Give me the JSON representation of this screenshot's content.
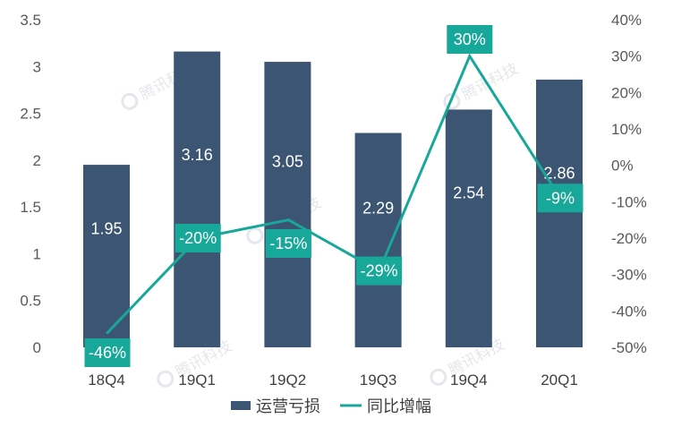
{
  "chart_data": {
    "type": "bar+line",
    "categories": [
      "18Q4",
      "19Q1",
      "19Q2",
      "19Q3",
      "19Q4",
      "20Q1"
    ],
    "series": [
      {
        "name": "运营亏损",
        "type": "bar",
        "axis": "left",
        "values": [
          1.95,
          3.16,
          3.05,
          2.29,
          2.54,
          2.86
        ],
        "labels": [
          "1.95",
          "3.16",
          "3.05",
          "2.29",
          "2.54",
          "2.86"
        ]
      },
      {
        "name": "同比增幅",
        "type": "line",
        "axis": "right",
        "values": [
          -46,
          -20,
          -15,
          -29,
          30,
          -9
        ],
        "labels": [
          "-46%",
          "-20%",
          "-15%",
          "-29%",
          "30%",
          "-9%"
        ]
      }
    ],
    "left_axis": {
      "min": 0,
      "max": 3.5,
      "ticks": [
        "0",
        "0.5",
        "1",
        "1.5",
        "2",
        "2.5",
        "3",
        "3.5"
      ]
    },
    "right_axis": {
      "min": -50,
      "max": 40,
      "ticks": [
        "-50%",
        "-40%",
        "-30%",
        "-20%",
        "-10%",
        "0%",
        "10%",
        "20%",
        "30%",
        "40%"
      ]
    },
    "legend": [
      "运营亏损",
      "同比增幅"
    ],
    "legend_position": "bottom-center",
    "colors": {
      "bar": "#3b5572",
      "line": "#17a89a",
      "label_box": "#17a89a"
    },
    "watermark": "腾讯科技"
  }
}
